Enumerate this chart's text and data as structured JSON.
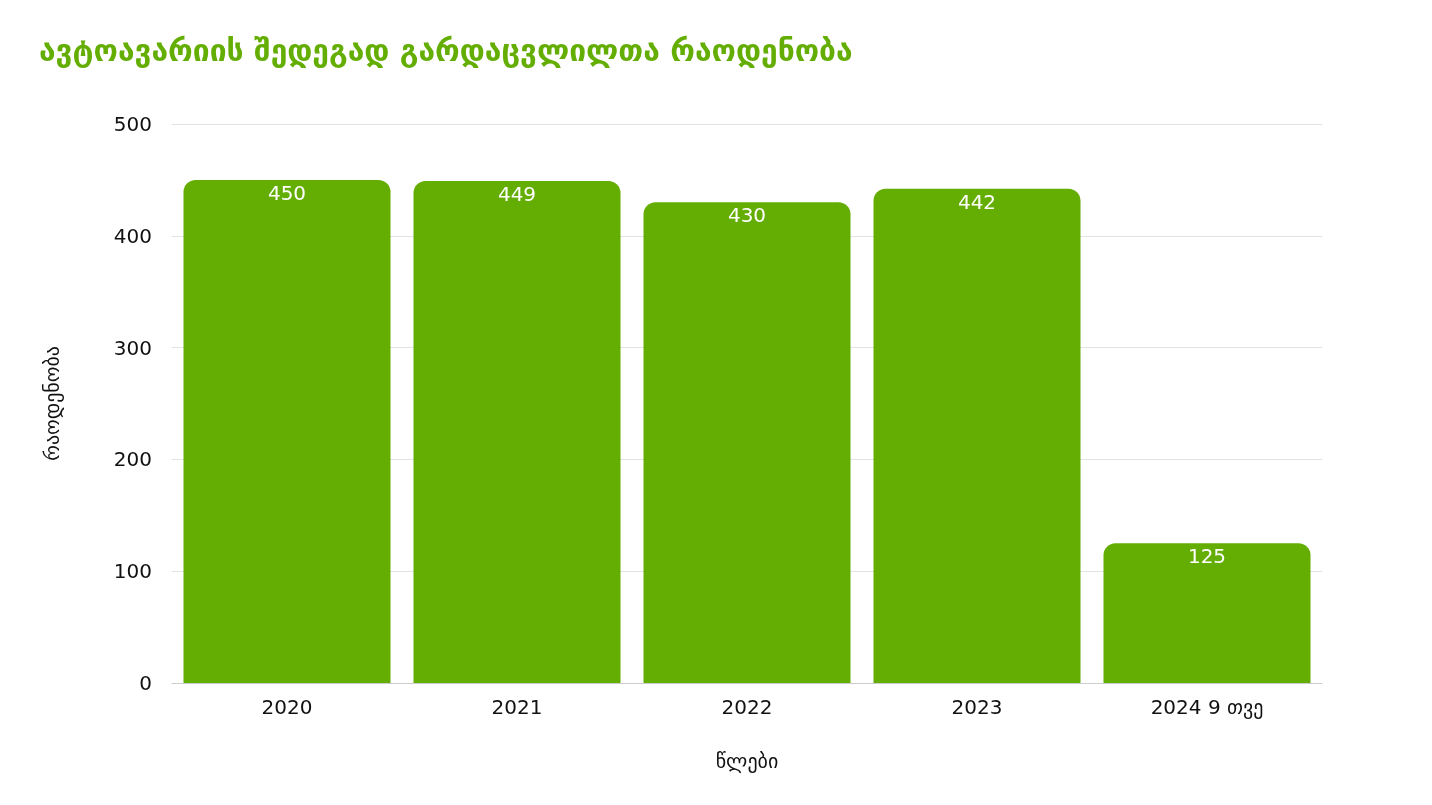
{
  "chart_data": {
    "type": "bar",
    "title": "ავტოავარიის შედეგად გარდაცვლილთა რაოდენობა",
    "xlabel": "წლები",
    "ylabel": "რაოდენობა",
    "categories": [
      "2020",
      "2021",
      "2022",
      "2023",
      "2024 9 თვე"
    ],
    "values": [
      450,
      449,
      430,
      442,
      125
    ],
    "color": "#64ae04",
    "ylim": [
      0,
      500
    ],
    "yticks": [
      0,
      100,
      200,
      300,
      400,
      500
    ],
    "grid": "y",
    "data_labels": true
  }
}
